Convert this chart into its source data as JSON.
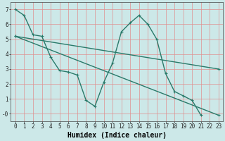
{
  "xlabel": "Humidex (Indice chaleur)",
  "background_color": "#cce8e8",
  "grid_color": "#e09090",
  "line_color": "#2a7a6a",
  "xlim": [
    -0.5,
    23.5
  ],
  "ylim": [
    -0.5,
    7.5
  ],
  "ytick_values": [
    0,
    1,
    2,
    3,
    4,
    5,
    6,
    7
  ],
  "ytick_labels": [
    "-0",
    "1",
    "2",
    "3",
    "4",
    "5",
    "6",
    "7"
  ],
  "xtick_values": [
    0,
    1,
    2,
    3,
    4,
    5,
    6,
    7,
    8,
    9,
    10,
    11,
    12,
    13,
    14,
    15,
    16,
    17,
    18,
    19,
    20,
    21,
    22,
    23
  ],
  "xtick_labels": [
    "0",
    "1",
    "2",
    "3",
    "4",
    "5",
    "6",
    "7",
    "8",
    "9",
    "10",
    "11",
    "12",
    "13",
    "14",
    "15",
    "16",
    "17",
    "18",
    "19",
    "20",
    "21",
    "22",
    "23"
  ],
  "line1_x": [
    0,
    1,
    2,
    3,
    4,
    5,
    6,
    7,
    8,
    9,
    10,
    11,
    12,
    13,
    14,
    15,
    16,
    17,
    18,
    19,
    20,
    21
  ],
  "line1_y": [
    7.0,
    6.6,
    5.3,
    5.2,
    3.8,
    2.9,
    2.8,
    2.6,
    0.9,
    0.5,
    2.1,
    3.4,
    5.5,
    6.1,
    6.6,
    6.0,
    5.0,
    2.7,
    1.5,
    1.2,
    0.9,
    -0.1
  ],
  "line2_x": [
    0,
    23
  ],
  "line2_y": [
    5.2,
    3.0
  ],
  "line3_x": [
    0,
    23
  ],
  "line3_y": [
    5.2,
    -0.1
  ],
  "marker_size": 3,
  "line_width": 1.0,
  "xlabel_fontsize": 7,
  "tick_fontsize": 5.5
}
